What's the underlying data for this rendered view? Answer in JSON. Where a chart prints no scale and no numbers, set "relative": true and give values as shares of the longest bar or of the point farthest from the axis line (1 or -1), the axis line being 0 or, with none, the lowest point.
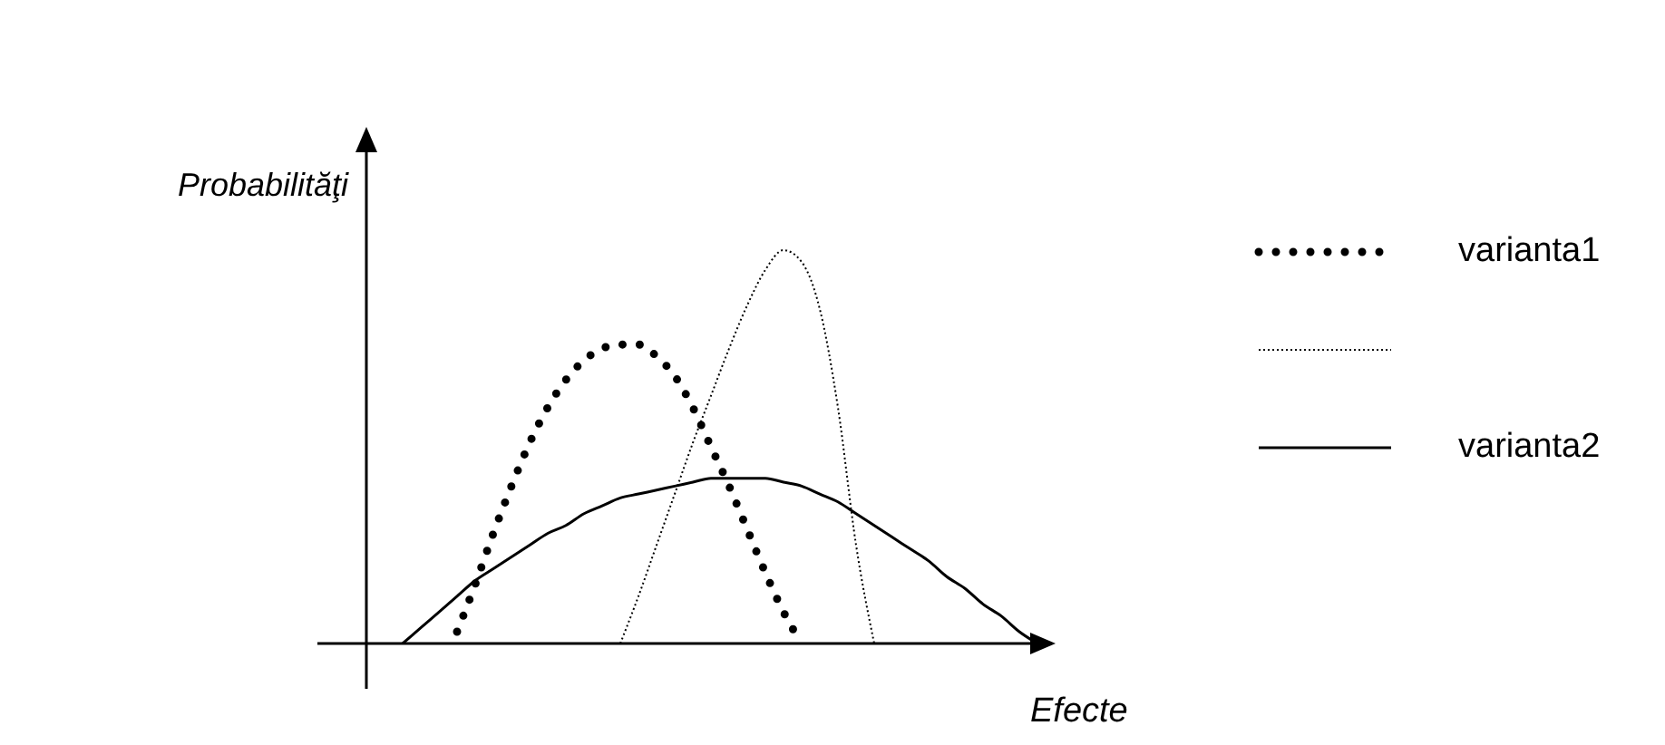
{
  "chart_data": {
    "type": "line",
    "relative": true,
    "xlabel": "Efecte",
    "ylabel": "Probabilităţi",
    "legend": "right",
    "categories": [
      null,
      null,
      null,
      null,
      null,
      null,
      null,
      null,
      null,
      null,
      null,
      null,
      null,
      null,
      null,
      null,
      null,
      null,
      null,
      null,
      null,
      null,
      null,
      null,
      null,
      null,
      null,
      null,
      null,
      null,
      null,
      null,
      null,
      null,
      null,
      null,
      null,
      null
    ],
    "series": [
      {
        "name": "varianta1",
        "color": "#000000",
        "line_style": "dotted",
        "values": [
          null,
          null,
          null,
          null,
          null,
          0.03,
          0.15,
          0.28,
          0.4,
          0.51,
          0.6,
          0.67,
          0.72,
          0.75,
          0.76,
          0.76,
          0.73,
          0.68,
          0.6,
          0.5,
          0.4,
          0.29,
          0.18,
          0.08,
          0,
          null,
          null,
          null,
          null,
          null,
          null,
          null,
          null,
          null,
          null,
          null,
          null,
          null
        ]
      },
      {
        "color": "#000000",
        "line_style": "dotted",
        "values": [
          null,
          null,
          null,
          null,
          null,
          null,
          null,
          null,
          null,
          null,
          null,
          null,
          null,
          null,
          0,
          0.12,
          0.25,
          0.38,
          0.51,
          0.63,
          0.75,
          0.86,
          0.95,
          1,
          0.97,
          0.85,
          0.6,
          0.25,
          0,
          null,
          null,
          null,
          null,
          null,
          null,
          null,
          null,
          null
        ]
      },
      {
        "name": "varianta2",
        "color": "#000000",
        "line_style": "solid",
        "values": [
          null,
          null,
          0,
          0.04,
          0.08,
          0.12,
          0.16,
          0.19,
          0.22,
          0.25,
          0.28,
          0.3,
          0.33,
          0.35,
          0.37,
          0.38,
          0.39,
          0.4,
          0.41,
          0.42,
          0.42,
          0.42,
          0.42,
          0.41,
          0.4,
          0.38,
          0.36,
          0.33,
          0.3,
          0.27,
          0.24,
          0.21,
          0.17,
          0.14,
          0.1,
          0.07,
          0.03,
          0
        ]
      }
    ]
  }
}
